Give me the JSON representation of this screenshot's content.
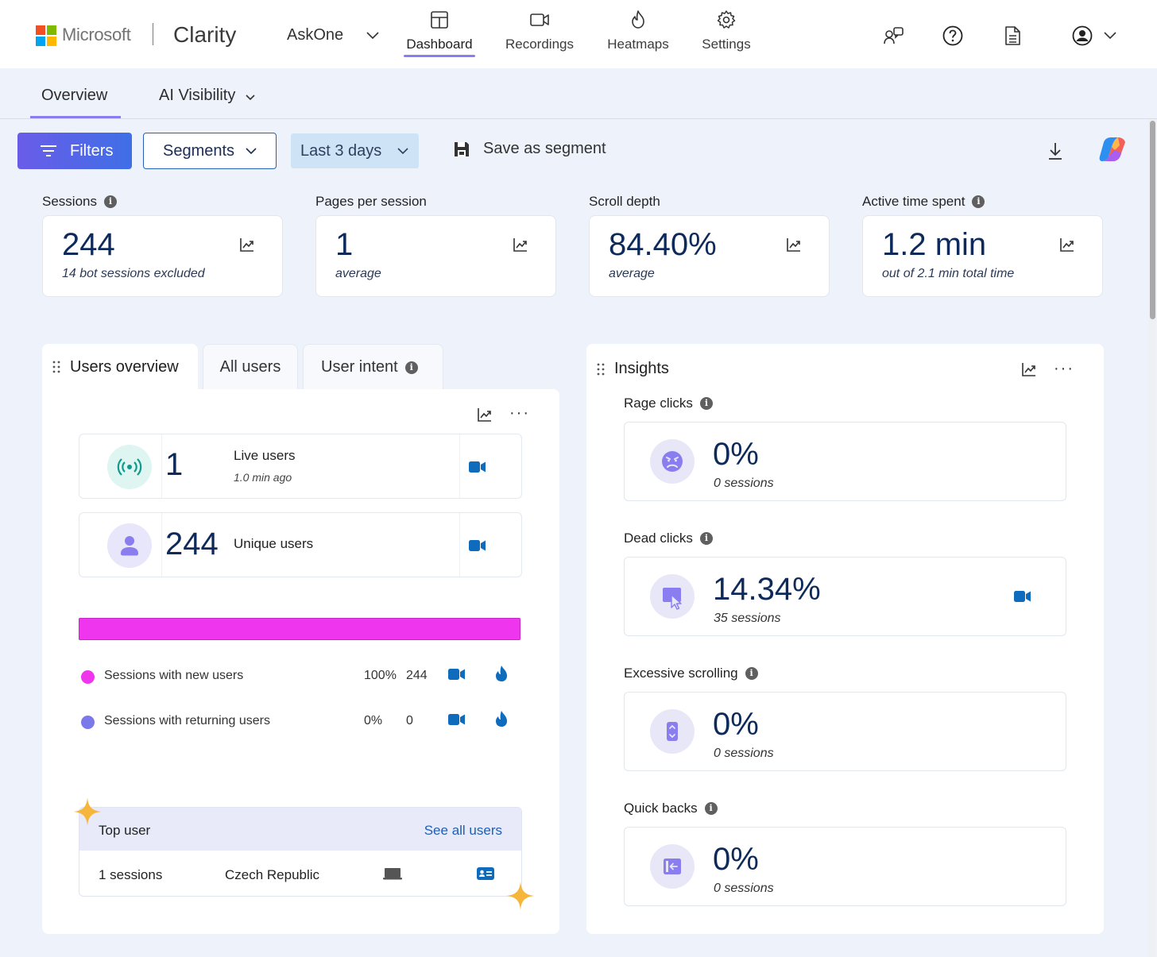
{
  "header": {
    "ms_brand": "Microsoft",
    "product": "Clarity",
    "project": "AskOne",
    "nav": [
      {
        "label": "Dashboard",
        "icon": "dashboard-icon",
        "active": true
      },
      {
        "label": "Recordings",
        "icon": "video-camera-icon"
      },
      {
        "label": "Heatmaps",
        "icon": "flame-icon"
      },
      {
        "label": "Settings",
        "icon": "gear-icon"
      }
    ],
    "icons": [
      "feedback-icon",
      "help-icon",
      "document-icon",
      "account-icon"
    ]
  },
  "subtabs": {
    "overview": "Overview",
    "ai_visibility": "AI Visibility"
  },
  "toolbar": {
    "filters": "Filters",
    "segments": "Segments",
    "date_range": "Last 3 days",
    "save_segment": "Save as segment"
  },
  "metrics": [
    {
      "label": "Sessions",
      "value": "244",
      "sub": "14 bot sessions excluded",
      "info": true
    },
    {
      "label": "Pages per session",
      "value": "1",
      "sub": "average"
    },
    {
      "label": "Scroll depth",
      "value": "84.40%",
      "sub": "average"
    },
    {
      "label": "Active time spent",
      "value": "1.2 min",
      "sub": "out of 2.1 min total time",
      "info": true
    }
  ],
  "users_panel": {
    "tabs": [
      "Users overview",
      "All users",
      "User intent"
    ],
    "live": {
      "value": "1",
      "label": "Live users",
      "sub": "1.0 min ago"
    },
    "unique": {
      "value": "244",
      "label": "Unique users"
    },
    "new_share": 1.0,
    "legend": [
      {
        "label": "Sessions with new users",
        "pct": "100%",
        "count": "244",
        "color": "#ef36ee"
      },
      {
        "label": "Sessions with returning users",
        "pct": "0%",
        "count": "0",
        "color": "#7b79ea"
      }
    ],
    "top_user": {
      "title": "Top user",
      "link": "See all users",
      "sessions": "1 sessions",
      "country": "Czech Republic"
    }
  },
  "insights": {
    "title": "Insights",
    "items": [
      {
        "label": "Rage clicks",
        "value": "0%",
        "sub": "0 sessions",
        "icon": "angry-face-icon"
      },
      {
        "label": "Dead clicks",
        "value": "14.34%",
        "sub": "35 sessions",
        "icon": "dead-click-icon",
        "has_recording": true
      },
      {
        "label": "Excessive scrolling",
        "value": "0%",
        "sub": "0 sessions",
        "icon": "scroll-icon"
      },
      {
        "label": "Quick backs",
        "value": "0%",
        "sub": "0 sessions",
        "icon": "quick-back-icon"
      }
    ]
  },
  "colors": {
    "accent": "#8a7df0",
    "primary_gradient_start": "#6a5ce8",
    "primary_gradient_end": "#3f6fe6",
    "value_text": "#0e2a5a",
    "link": "#1d5fb8",
    "camera": "#0f6cbd"
  }
}
